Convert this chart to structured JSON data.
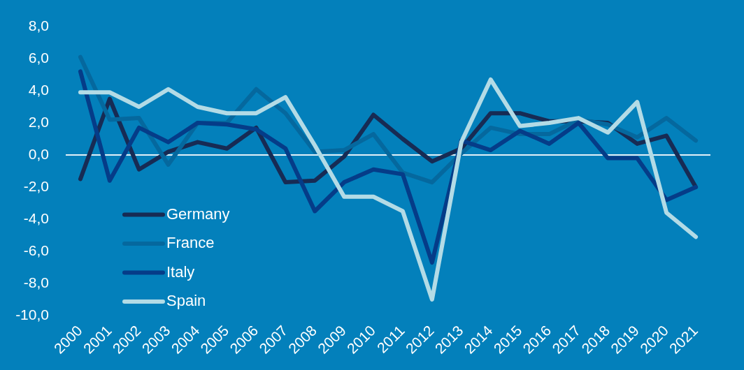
{
  "chart_data": {
    "type": "line",
    "categories": [
      "2000",
      "2001",
      "2002",
      "2003",
      "2004",
      "2005",
      "2006",
      "2007",
      "2008",
      "2009",
      "2010",
      "2011",
      "2012",
      "2013",
      "2014",
      "2015",
      "2016",
      "2017",
      "2018",
      "2019",
      "2020",
      "2021"
    ],
    "series": [
      {
        "name": "Germany",
        "color": "#172b54",
        "values": [
          -1.5,
          3.5,
          -0.9,
          0.2,
          0.8,
          0.4,
          1.7,
          -1.7,
          -1.6,
          -0.1,
          2.5,
          1.0,
          -0.4,
          0.4,
          2.6,
          2.6,
          2.1,
          2.1,
          2.0,
          0.7,
          1.2,
          -2.0
        ]
      },
      {
        "name": "France",
        "color": "#05689e",
        "values": [
          6.1,
          2.2,
          2.3,
          -0.6,
          2.0,
          2.0,
          4.1,
          2.6,
          0.2,
          0.3,
          1.3,
          -1.1,
          -1.7,
          0.1,
          1.7,
          1.3,
          1.3,
          2.2,
          1.9,
          1.1,
          2.3,
          0.9
        ]
      },
      {
        "name": "Italy",
        "color": "#053c88",
        "values": [
          5.2,
          -1.6,
          1.7,
          0.8,
          2.0,
          1.9,
          1.6,
          0.4,
          -3.5,
          -1.7,
          -0.9,
          -1.2,
          -6.7,
          0.9,
          0.3,
          1.5,
          0.7,
          2.0,
          -0.2,
          -0.2,
          -2.8,
          -2.0
        ]
      },
      {
        "name": "Spain",
        "color": "#b3dbe6",
        "values": [
          3.9,
          3.9,
          3.0,
          4.1,
          3.0,
          2.6,
          2.6,
          3.6,
          0.6,
          -2.6,
          -2.6,
          -3.5,
          -9.0,
          0.8,
          4.7,
          1.8,
          2.0,
          2.3,
          1.4,
          3.3,
          -3.6,
          -5.1
        ]
      }
    ],
    "ylim": [
      -10,
      8
    ],
    "yticks": [
      {
        "value": -10,
        "label": "-10,0"
      },
      {
        "value": -8,
        "label": "-8,0"
      },
      {
        "value": -6,
        "label": "-6,0"
      },
      {
        "value": -4,
        "label": "-4,0"
      },
      {
        "value": -2,
        "label": "-2,0"
      },
      {
        "value": 0,
        "label": "0,0"
      },
      {
        "value": 2,
        "label": "2,0"
      },
      {
        "value": 4,
        "label": "4,0"
      },
      {
        "value": 6,
        "label": "6,0"
      },
      {
        "value": 8,
        "label": "8,0"
      }
    ],
    "ref_lines": [
      {
        "axis": "y",
        "value": 0,
        "color": "#e3f1f8"
      }
    ],
    "legend": "bottom left",
    "line_style": "solid"
  }
}
